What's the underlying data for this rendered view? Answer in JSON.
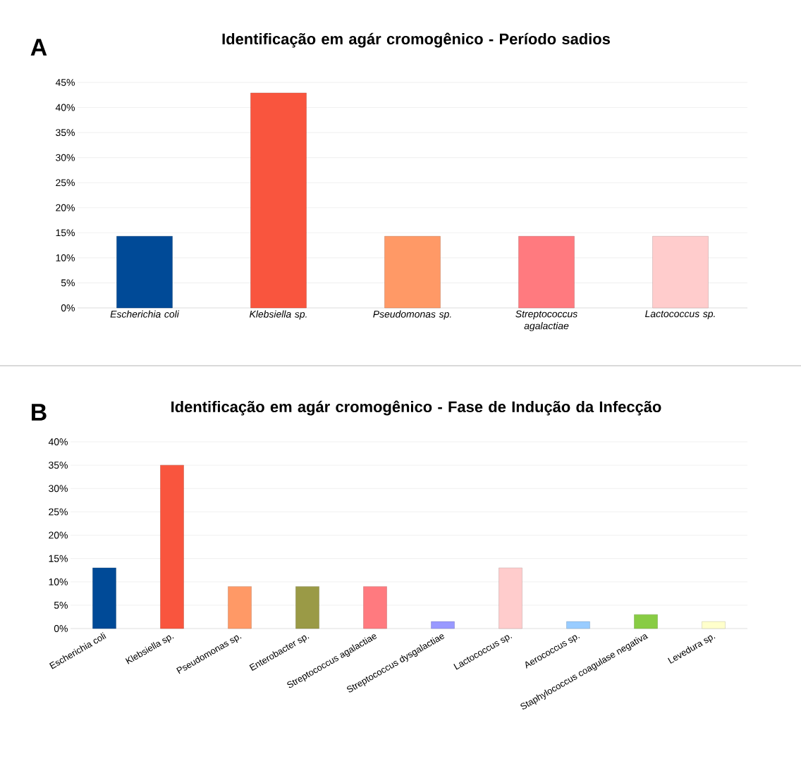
{
  "chart_data": [
    {
      "type": "bar",
      "title": "Identificação em agár cromogênico - Período sadios",
      "annotations": [
        "A"
      ],
      "categories": [
        "Escherichia coli",
        "Klebsiella sp.",
        "Pseudomonas sp.",
        "Streptococcus agalactiae",
        "Lactococcus sp."
      ],
      "values": [
        14.3,
        42.9,
        14.3,
        14.3,
        14.3
      ],
      "colors": [
        "#004a97",
        "#f9553e",
        "#ff9966",
        "#ff7a7f",
        "#ffcccc"
      ],
      "ylim": [
        0,
        45
      ],
      "yticks": [
        {
          "value": 0,
          "label": "0%"
        },
        {
          "value": 5,
          "label": "5%"
        },
        {
          "value": 10,
          "label": "10%"
        },
        {
          "value": 15,
          "label": "15%"
        },
        {
          "value": 20,
          "label": "20%"
        },
        {
          "value": 25,
          "label": "25%"
        },
        {
          "value": 30,
          "label": "30%"
        },
        {
          "value": 35,
          "label": "35%"
        },
        {
          "value": 40,
          "label": "40%"
        },
        {
          "value": 45,
          "label": "45%"
        }
      ],
      "grid": "y"
    },
    {
      "type": "bar",
      "title": "Identificação em agár cromogênico - Fase de Indução da Infecção",
      "annotations": [
        "B"
      ],
      "categories": [
        "Escherichia coli",
        "Klebsiella sp.",
        "Pseudomonas sp.",
        "Enterobacter  sp.",
        "Streptococcus agalactiae",
        "Streptococcus dysgalactiae",
        "Lactococcus sp.",
        "Aerococcus sp.",
        "Staphylococcus coagulase negativa",
        "Levedura sp."
      ],
      "values": [
        13,
        35,
        9,
        9,
        9,
        1.5,
        13,
        1.5,
        3,
        1.5
      ],
      "colors": [
        "#004a97",
        "#f9553e",
        "#ff9966",
        "#9a9a46",
        "#ff7a7f",
        "#9999ff",
        "#ffcccc",
        "#99ccff",
        "#88cc44",
        "#ffffcc"
      ],
      "ylim": [
        0,
        40
      ],
      "yticks": [
        {
          "value": 0,
          "label": "0%"
        },
        {
          "value": 5,
          "label": "5%"
        },
        {
          "value": 10,
          "label": "10%"
        },
        {
          "value": 15,
          "label": "15%"
        },
        {
          "value": 20,
          "label": "20%"
        },
        {
          "value": 25,
          "label": "25%"
        },
        {
          "value": 30,
          "label": "30%"
        },
        {
          "value": 35,
          "label": "35%"
        },
        {
          "value": 40,
          "label": "40%"
        }
      ],
      "grid": "y"
    }
  ]
}
